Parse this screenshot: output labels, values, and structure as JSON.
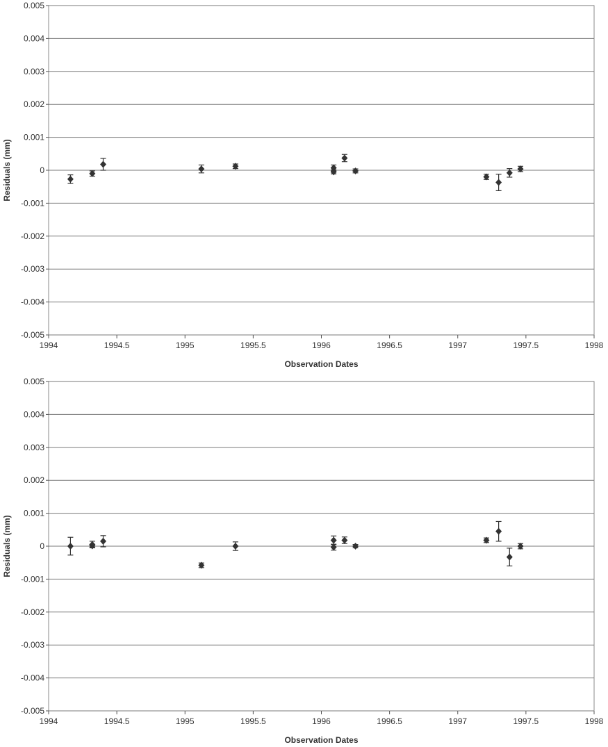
{
  "chart_data": [
    {
      "type": "scatter",
      "xlabel": "Observation Dates",
      "ylabel": "Residuals (mm)",
      "xlim": [
        1994,
        1998
      ],
      "ylim": [
        -0.005,
        0.005
      ],
      "x_ticks": [
        "1994",
        "1994.5",
        "1995",
        "1995.5",
        "1996",
        "1996.5",
        "1997",
        "1997.5",
        "1998"
      ],
      "y_ticks": [
        "0.005",
        "0.004",
        "0.003",
        "0.002",
        "0.001",
        "0",
        "-0.001",
        "-0.002",
        "-0.003",
        "-0.004",
        "-0.005"
      ],
      "grid": true,
      "marker_color": "#333333",
      "points": [
        {
          "x": 1994.16,
          "y": -0.00027,
          "err": 0.00013
        },
        {
          "x": 1994.32,
          "y": -0.0001,
          "err": 8e-05
        },
        {
          "x": 1994.4,
          "y": 0.00018,
          "err": 0.00018
        },
        {
          "x": 1995.12,
          "y": 4e-05,
          "err": 0.00012
        },
        {
          "x": 1995.37,
          "y": 0.00012,
          "err": 7e-05
        },
        {
          "x": 1996.09,
          "y": 7e-05,
          "err": 9e-05
        },
        {
          "x": 1996.09,
          "y": -5e-05,
          "err": 6e-05
        },
        {
          "x": 1996.17,
          "y": 0.00037,
          "err": 0.00011
        },
        {
          "x": 1996.25,
          "y": -2e-05,
          "err": 6e-05
        },
        {
          "x": 1997.21,
          "y": -0.0002,
          "err": 8e-05
        },
        {
          "x": 1997.3,
          "y": -0.00037,
          "err": 0.00025
        },
        {
          "x": 1997.38,
          "y": -8e-05,
          "err": 0.00013
        },
        {
          "x": 1997.46,
          "y": 4e-05,
          "err": 8e-05
        }
      ]
    },
    {
      "type": "scatter",
      "xlabel": "Observation Dates",
      "ylabel": "Residuals (mm)",
      "xlim": [
        1994,
        1998
      ],
      "ylim": [
        -0.005,
        0.005
      ],
      "x_ticks": [
        "1994",
        "1994.5",
        "1995",
        "1995.5",
        "1996",
        "1996.5",
        "1997",
        "1997.5",
        "1998"
      ],
      "y_ticks": [
        "0.005",
        "0.004",
        "0.003",
        "0.002",
        "0.001",
        "0",
        "-0.001",
        "-0.002",
        "-0.003",
        "-0.004",
        "-0.005"
      ],
      "grid": true,
      "marker_color": "#333333",
      "points": [
        {
          "x": 1994.16,
          "y": 0.0,
          "err": 0.00027
        },
        {
          "x": 1994.32,
          "y": 5e-05,
          "err": 0.0001
        },
        {
          "x": 1994.32,
          "y": 1e-05,
          "err": 4e-05
        },
        {
          "x": 1994.4,
          "y": 0.00015,
          "err": 0.00017
        },
        {
          "x": 1995.12,
          "y": -0.00058,
          "err": 7e-05
        },
        {
          "x": 1995.37,
          "y": 0.0,
          "err": 0.00013
        },
        {
          "x": 1996.09,
          "y": 0.00018,
          "err": 0.00013
        },
        {
          "x": 1996.09,
          "y": -3e-05,
          "err": 9e-05
        },
        {
          "x": 1996.17,
          "y": 0.00018,
          "err": 0.0001
        },
        {
          "x": 1996.25,
          "y": 0.0,
          "err": 5e-05
        },
        {
          "x": 1997.21,
          "y": 0.00018,
          "err": 7e-05
        },
        {
          "x": 1997.3,
          "y": 0.00045,
          "err": 0.0003
        },
        {
          "x": 1997.38,
          "y": -0.00033,
          "err": 0.00027
        },
        {
          "x": 1997.46,
          "y": 0.0,
          "err": 8e-05
        }
      ]
    }
  ]
}
